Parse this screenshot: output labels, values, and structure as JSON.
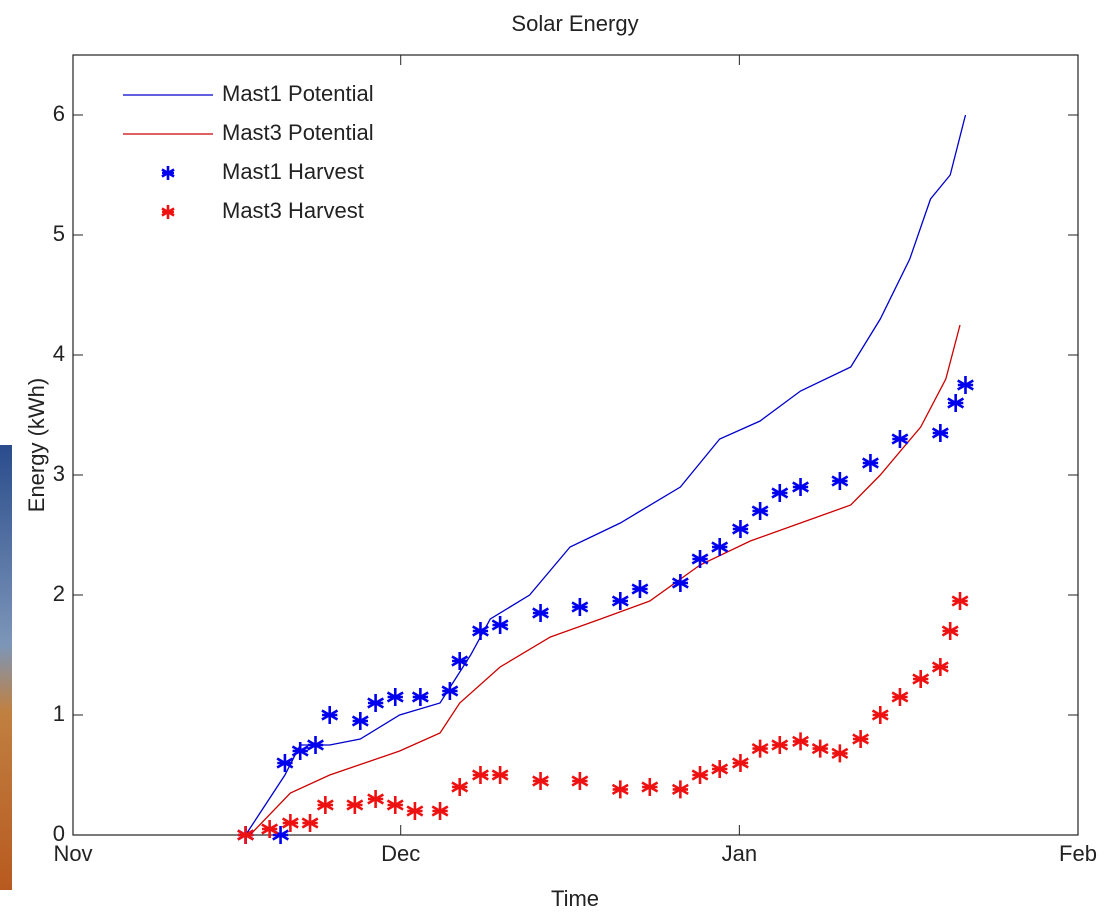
{
  "chart_data": {
    "type": "line",
    "title": "Solar Energy",
    "x_label": "Time",
    "y_label": "Energy (kWh)",
    "xlim": [
      0,
      92
    ],
    "xticks": [
      {
        "value": 0,
        "label": "Nov"
      },
      {
        "value": 30,
        "label": "Dec"
      },
      {
        "value": 61,
        "label": "Jan"
      },
      {
        "value": 92,
        "label": "Feb"
      }
    ],
    "ylim": [
      0,
      6.5
    ],
    "yticks": [
      0,
      1,
      2,
      3,
      4,
      5,
      6
    ],
    "legend": "upper-left",
    "series": [
      {
        "name": "Mast1 Potential",
        "color": "#0000cc",
        "marker": "none",
        "x": [
          15.8,
          19.4,
          20.8,
          23.5,
          26.3,
          29.9,
          33.6,
          36.4,
          38.2,
          41.8,
          45.5,
          50.1,
          55.6,
          59.2,
          62.9,
          66.6,
          71.2,
          73.9,
          76.6,
          78.5,
          80.3,
          81.7
        ],
        "values": [
          0,
          0.5,
          0.75,
          0.75,
          0.8,
          1.0,
          1.1,
          1.5,
          1.8,
          2.0,
          2.4,
          2.6,
          2.9,
          3.3,
          3.45,
          3.7,
          3.9,
          4.3,
          4.8,
          5.3,
          5.5,
          6.0
        ]
      },
      {
        "name": "Mast3 Potential",
        "color": "#cc0000",
        "marker": "none",
        "x": [
          16.2,
          19.9,
          23.5,
          29.9,
          33.6,
          35.4,
          39.1,
          43.7,
          48.3,
          52.8,
          57.4,
          62.0,
          66.6,
          71.2,
          73.9,
          77.6,
          79.9,
          81.2
        ],
        "values": [
          0,
          0.35,
          0.5,
          0.7,
          0.85,
          1.1,
          1.4,
          1.65,
          1.8,
          1.95,
          2.25,
          2.45,
          2.6,
          2.75,
          3.0,
          3.4,
          3.8,
          4.25
        ]
      },
      {
        "name": "Mast1 Harvest",
        "color": "#0000ee",
        "marker": "*",
        "x": [
          15.8,
          19.0,
          19.4,
          20.8,
          22.2,
          23.5,
          26.3,
          27.7,
          29.5,
          31.8,
          34.5,
          35.4,
          37.3,
          39.1,
          42.8,
          46.4,
          50.1,
          51.9,
          55.6,
          57.4,
          59.2,
          61.1,
          62.9,
          64.7,
          66.6,
          70.2,
          73.0,
          75.7,
          79.4,
          80.8,
          81.7
        ],
        "values": [
          0,
          0,
          0.6,
          0.7,
          0.75,
          1.0,
          0.95,
          1.1,
          1.15,
          1.15,
          1.2,
          1.45,
          1.7,
          1.75,
          1.85,
          1.9,
          1.95,
          2.05,
          2.1,
          2.3,
          2.4,
          2.55,
          2.7,
          2.85,
          2.9,
          2.95,
          3.1,
          3.3,
          3.35,
          3.6,
          3.75
        ]
      },
      {
        "name": "Mast3 Harvest",
        "color": "#ee1111",
        "marker": "*",
        "x": [
          15.8,
          18.0,
          19.9,
          21.7,
          23.1,
          25.8,
          27.7,
          29.5,
          31.3,
          33.6,
          35.4,
          37.3,
          39.1,
          42.8,
          46.4,
          50.1,
          52.8,
          55.6,
          57.4,
          59.2,
          61.1,
          62.9,
          64.7,
          66.6,
          68.4,
          70.2,
          72.1,
          73.9,
          75.7,
          77.6,
          79.4,
          80.3,
          81.2
        ],
        "values": [
          0,
          0.05,
          0.1,
          0.1,
          0.25,
          0.25,
          0.3,
          0.25,
          0.2,
          0.2,
          0.4,
          0.5,
          0.5,
          0.45,
          0.45,
          0.38,
          0.4,
          0.38,
          0.5,
          0.55,
          0.6,
          0.72,
          0.75,
          0.78,
          0.72,
          0.68,
          0.8,
          1.0,
          1.15,
          1.3,
          1.4,
          1.7,
          1.95
        ]
      }
    ]
  }
}
